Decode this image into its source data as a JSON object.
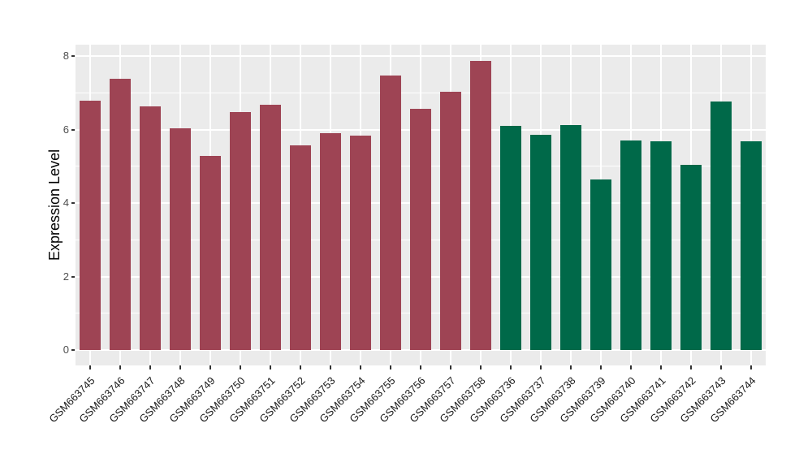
{
  "chart_data": {
    "type": "bar",
    "title": "",
    "xlabel": "",
    "ylabel": "Expression Level",
    "ylim": [
      -0.42,
      8.31
    ],
    "yticks": [
      0,
      2,
      4,
      6,
      8
    ],
    "minor_yticks": [
      1,
      3,
      5,
      7
    ],
    "grid": true,
    "legend_position": "none",
    "panel_background": "#EBEBEB",
    "gridline_color": "#FFFFFF",
    "groups": [
      {
        "name": "group-1",
        "color": "#9E4454",
        "categories": [
          "GSM663745",
          "GSM663746",
          "GSM663747",
          "GSM663748",
          "GSM663749",
          "GSM663750",
          "GSM663751",
          "GSM663752",
          "GSM663753",
          "GSM663754",
          "GSM663755",
          "GSM663756",
          "GSM663757",
          "GSM663758"
        ],
        "values": [
          6.78,
          7.39,
          6.64,
          6.04,
          5.28,
          6.47,
          6.67,
          5.56,
          5.9,
          5.84,
          7.47,
          6.56,
          7.02,
          7.86
        ]
      },
      {
        "name": "group-2",
        "color": "#006949",
        "categories": [
          "GSM663736",
          "GSM663737",
          "GSM663738",
          "GSM663739",
          "GSM663740",
          "GSM663741",
          "GSM663742",
          "GSM663743",
          "GSM663744"
        ],
        "values": [
          6.09,
          5.85,
          6.12,
          4.65,
          5.71,
          5.69,
          5.04,
          6.76,
          5.67
        ]
      }
    ]
  }
}
